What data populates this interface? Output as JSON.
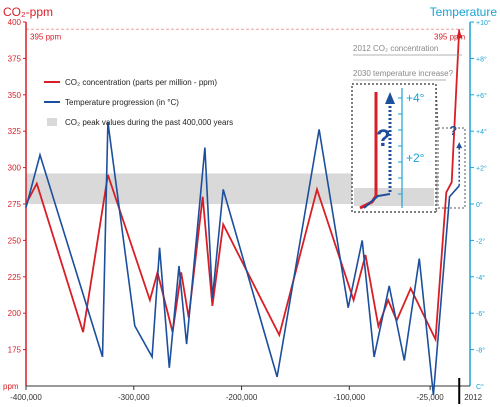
{
  "chart_data": {
    "type": "line",
    "left_axis": {
      "title": "CO₂-ppm",
      "unit_label": "ppm",
      "ticks": [
        175,
        200,
        225,
        250,
        275,
        300,
        325,
        350,
        375,
        400
      ],
      "range": [
        150,
        400
      ],
      "color": "#d81f26"
    },
    "right_axis": {
      "title": "Temperature",
      "ticks": [
        "-8°",
        "-6°",
        "-4°",
        "-2°",
        "0°",
        "+2°",
        "+4°",
        "+6°",
        "+8°",
        "+10°"
      ],
      "ticks_values": [
        -8,
        -6,
        -4,
        -2,
        0,
        2,
        4,
        6,
        8,
        10
      ],
      "extra_tick": "C°",
      "range": [
        -10,
        10
      ],
      "color": "#1aa3d4"
    },
    "x_axis": {
      "ticks": [
        "-400,000",
        "-300,000",
        "-200,000",
        "-100,000",
        "-25,000",
        "2012"
      ],
      "tick_values": [
        -400000,
        -300000,
        -200000,
        -100000,
        -25000,
        2012
      ],
      "range": [
        -400000,
        12000
      ]
    },
    "reference_line": {
      "value": 395,
      "label": "395 ppm",
      "label_right": "395 ppm"
    },
    "band": {
      "from": 275,
      "to": 296,
      "color": "#d9d9d9"
    },
    "legend": [
      {
        "label": "CO₂ concentration (parts per million - ppm)",
        "color": "#d81f26",
        "kind": "line"
      },
      {
        "label": "Temperature progression (in °C)",
        "color": "#1c4f9c",
        "kind": "line"
      },
      {
        "label": "CO₂ peak values during the past 400,000 years",
        "color": "#d9d9d9",
        "kind": "box"
      }
    ],
    "series": [
      {
        "name": "CO₂ concentration",
        "axis": "left",
        "color": "#d81f26",
        "points": [
          [
            -400000,
            275
          ],
          [
            -390000,
            289
          ],
          [
            -347000,
            187
          ],
          [
            -324000,
            295
          ],
          [
            -285000,
            209
          ],
          [
            -278000,
            228
          ],
          [
            -264000,
            187
          ],
          [
            -256000,
            228
          ],
          [
            -249000,
            197
          ],
          [
            -236000,
            280
          ],
          [
            -227000,
            205
          ],
          [
            -217000,
            261
          ],
          [
            -165000,
            185
          ],
          [
            -130000,
            285
          ],
          [
            -96000,
            209
          ],
          [
            -85000,
            240
          ],
          [
            -73000,
            191
          ],
          [
            -64000,
            209
          ],
          [
            -56000,
            195
          ],
          [
            -43000,
            217
          ],
          [
            -20000,
            182
          ],
          [
            -10000,
            283
          ],
          [
            -5000,
            290
          ],
          [
            2012,
            395
          ]
        ]
      },
      {
        "name": "Temperature",
        "axis": "right",
        "color": "#1c4f9c",
        "points": [
          [
            -400000,
            -0.2
          ],
          [
            -387000,
            2.7
          ],
          [
            -329000,
            -8.4
          ],
          [
            -324000,
            4.5
          ],
          [
            -299000,
            -6.7
          ],
          [
            -283000,
            -8.4
          ],
          [
            -276000,
            -2.4
          ],
          [
            -267000,
            -9.0
          ],
          [
            -258000,
            -3.4
          ],
          [
            -251000,
            -7.7
          ],
          [
            -234000,
            3.1
          ],
          [
            -227000,
            -5.2
          ],
          [
            -217000,
            0.8
          ],
          [
            -167000,
            -9.5
          ],
          [
            -128000,
            4.1
          ],
          [
            -101000,
            -5.7
          ],
          [
            -88000,
            -2.0
          ],
          [
            -77000,
            -8.4
          ],
          [
            -63000,
            -4.5
          ],
          [
            -49000,
            -8.6
          ],
          [
            -35000,
            -3.0
          ],
          [
            -22000,
            -10.5
          ],
          [
            -7000,
            0.4
          ],
          [
            2012,
            1.0
          ]
        ]
      }
    ],
    "annotations": {
      "current_label": "2012 CO₂ concentration",
      "question_label": "2030 temperature increase?",
      "inset_ticks": [
        "+2°",
        "+4°"
      ],
      "question_mark": "?"
    }
  }
}
